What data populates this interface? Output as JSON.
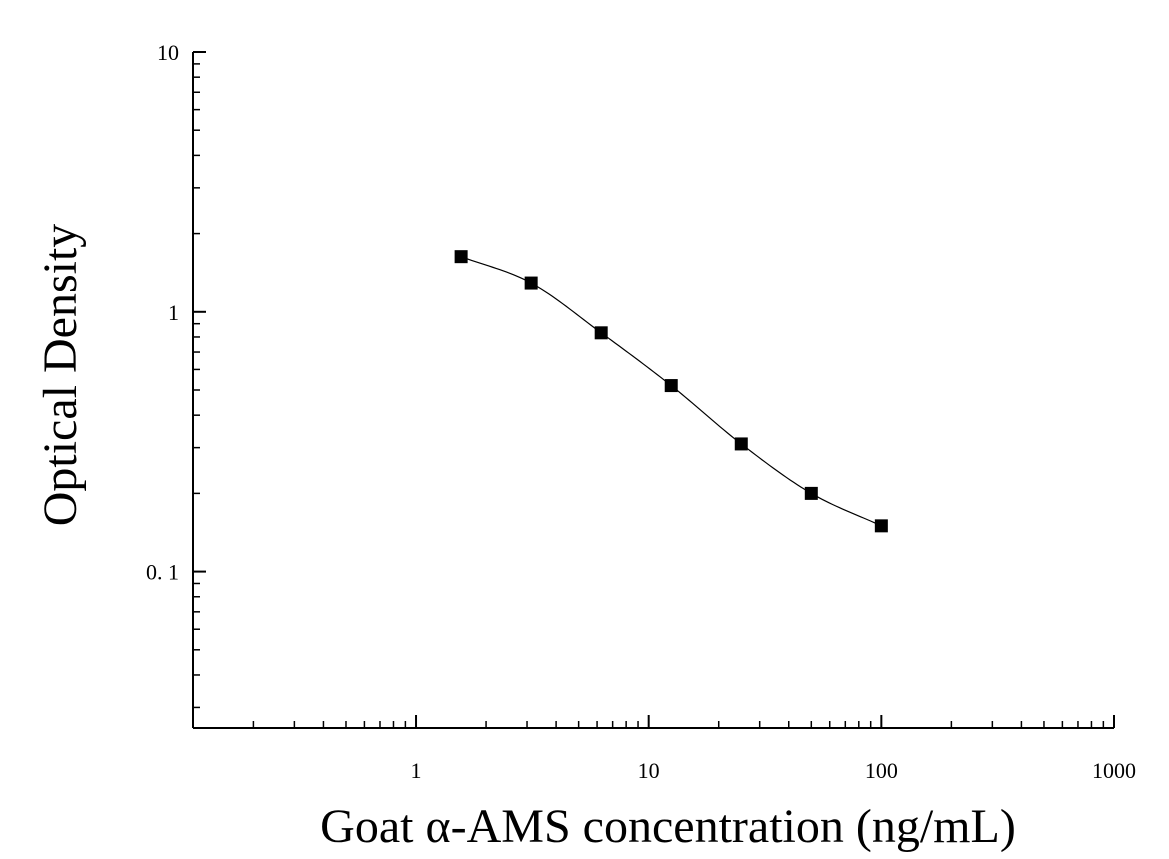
{
  "chart_data": {
    "type": "scatter",
    "title": "",
    "xlabel": "Goat α-AMS concentration (ng/mL)",
    "ylabel": "Optical Density",
    "xscale": "log",
    "yscale": "log",
    "xlim": [
      0.11,
      1000
    ],
    "ylim": [
      0.025,
      10
    ],
    "x_ticks": [
      {
        "value": 1,
        "label": "1"
      },
      {
        "value": 10,
        "label": "10"
      },
      {
        "value": 100,
        "label": "100"
      },
      {
        "value": 1000,
        "label": "1000"
      }
    ],
    "y_ticks": [
      {
        "value": 0.1,
        "label": "0. 1"
      },
      {
        "value": 1,
        "label": "1"
      },
      {
        "value": 10,
        "label": "10"
      }
    ],
    "grid": false,
    "legend": "none",
    "fit_line": true,
    "series": [
      {
        "marker": "square",
        "color": "#000000",
        "x": [
          1.5625,
          3.125,
          6.25,
          12.5,
          25,
          50,
          100
        ],
        "y": [
          1.63,
          1.29,
          0.83,
          0.52,
          0.31,
          0.2,
          0.15
        ]
      }
    ]
  }
}
